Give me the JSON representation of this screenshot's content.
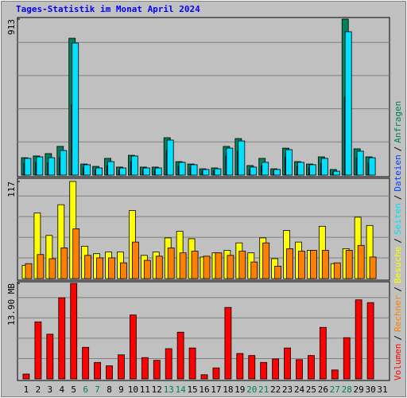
{
  "chart_data": [
    {
      "type": "bar",
      "title": "Tages-Statistik im Monat April 2024",
      "ylim": [
        0,
        913
      ],
      "yticks": [
        913
      ],
      "legend_separator": "/",
      "series": [
        {
          "name": "Anfragen",
          "color": "#00805c",
          "values": [
            102,
            112,
            126,
            168,
            801,
            65,
            51,
            98,
            47,
            116,
            47,
            47,
            219,
            79,
            65,
            37,
            42,
            168,
            214,
            56,
            98,
            37,
            158,
            79,
            65,
            107,
            33,
            913,
            154,
            107,
            null
          ]
        },
        {
          "name": "Dateien",
          "color": "#0040ff",
          "values": [
            69,
            75,
            71,
            101,
            410,
            43,
            29,
            55,
            29,
            78,
            29,
            29,
            144,
            53,
            43,
            23,
            26,
            111,
            140,
            33,
            53,
            23,
            104,
            53,
            43,
            69,
            16,
            456,
            98,
            71,
            null
          ]
        },
        {
          "name": "Seiten",
          "color": "#00e0ff",
          "values": [
            98,
            107,
            102,
            144,
            773,
            61,
            42,
            79,
            42,
            112,
            42,
            42,
            205,
            75,
            61,
            33,
            37,
            158,
            200,
            47,
            75,
            33,
            149,
            75,
            61,
            98,
            23,
            839,
            140,
            102,
            null
          ]
        }
      ]
    },
    {
      "type": "bar",
      "ylim": [
        0,
        117
      ],
      "yticks": [
        117
      ],
      "series": [
        {
          "name": "Besuche",
          "color": "#ffff00",
          "values": [
            16,
            79,
            52,
            89,
            117,
            39,
            30,
            32,
            32,
            82,
            28,
            32,
            49,
            57,
            48,
            26,
            31,
            34,
            43,
            31,
            49,
            24,
            58,
            44,
            34,
            63,
            18,
            36,
            74,
            64,
            null
          ]
        },
        {
          "name": "Rechner",
          "color": "#ff8000",
          "values": [
            18,
            29,
            24,
            37,
            60,
            28,
            25,
            25,
            19,
            44,
            22,
            27,
            37,
            31,
            33,
            27,
            31,
            28,
            33,
            20,
            43,
            15,
            36,
            33,
            34,
            34,
            19,
            34,
            40,
            26,
            null
          ]
        }
      ]
    },
    {
      "type": "bar",
      "ylim": [
        0,
        13.9
      ],
      "yticks": [
        {
          "value": 13.9,
          "label": "13.90 MB"
        }
      ],
      "categories": [
        "1",
        "2",
        "3",
        "4",
        "5",
        "6",
        "7",
        "8",
        "9",
        "10",
        "11",
        "12",
        "13",
        "14",
        "15",
        "16",
        "17",
        "18",
        "19",
        "20",
        "21",
        "22",
        "23",
        "24",
        "25",
        "26",
        "27",
        "28",
        "29",
        "30",
        "31"
      ],
      "category_colors": [
        "#000000",
        "#000000",
        "#000000",
        "#000000",
        "#000000",
        "#00805c",
        "#00805c",
        "#000000",
        "#000000",
        "#000000",
        "#000000",
        "#000000",
        "#00805c",
        "#00805c",
        "#000000",
        "#000000",
        "#000000",
        "#000000",
        "#000000",
        "#00805c",
        "#00805c",
        "#000000",
        "#000000",
        "#000000",
        "#000000",
        "#000000",
        "#00805c",
        "#00805c",
        "#000000",
        "#000000",
        "#000000"
      ],
      "series": [
        {
          "name": "Volumen",
          "color": "#ff0000",
          "values": [
            0.7,
            8.3,
            6.5,
            11.8,
            13.9,
            4.6,
            2.4,
            1.9,
            3.5,
            9.3,
            3.1,
            2.7,
            4.4,
            6.8,
            4.5,
            0.6,
            1.6,
            10.4,
            3.7,
            3.4,
            2.4,
            2.9,
            4.5,
            2.8,
            3.4,
            7.5,
            1.3,
            6.0,
            11.5,
            11.1,
            null
          ]
        }
      ]
    }
  ]
}
